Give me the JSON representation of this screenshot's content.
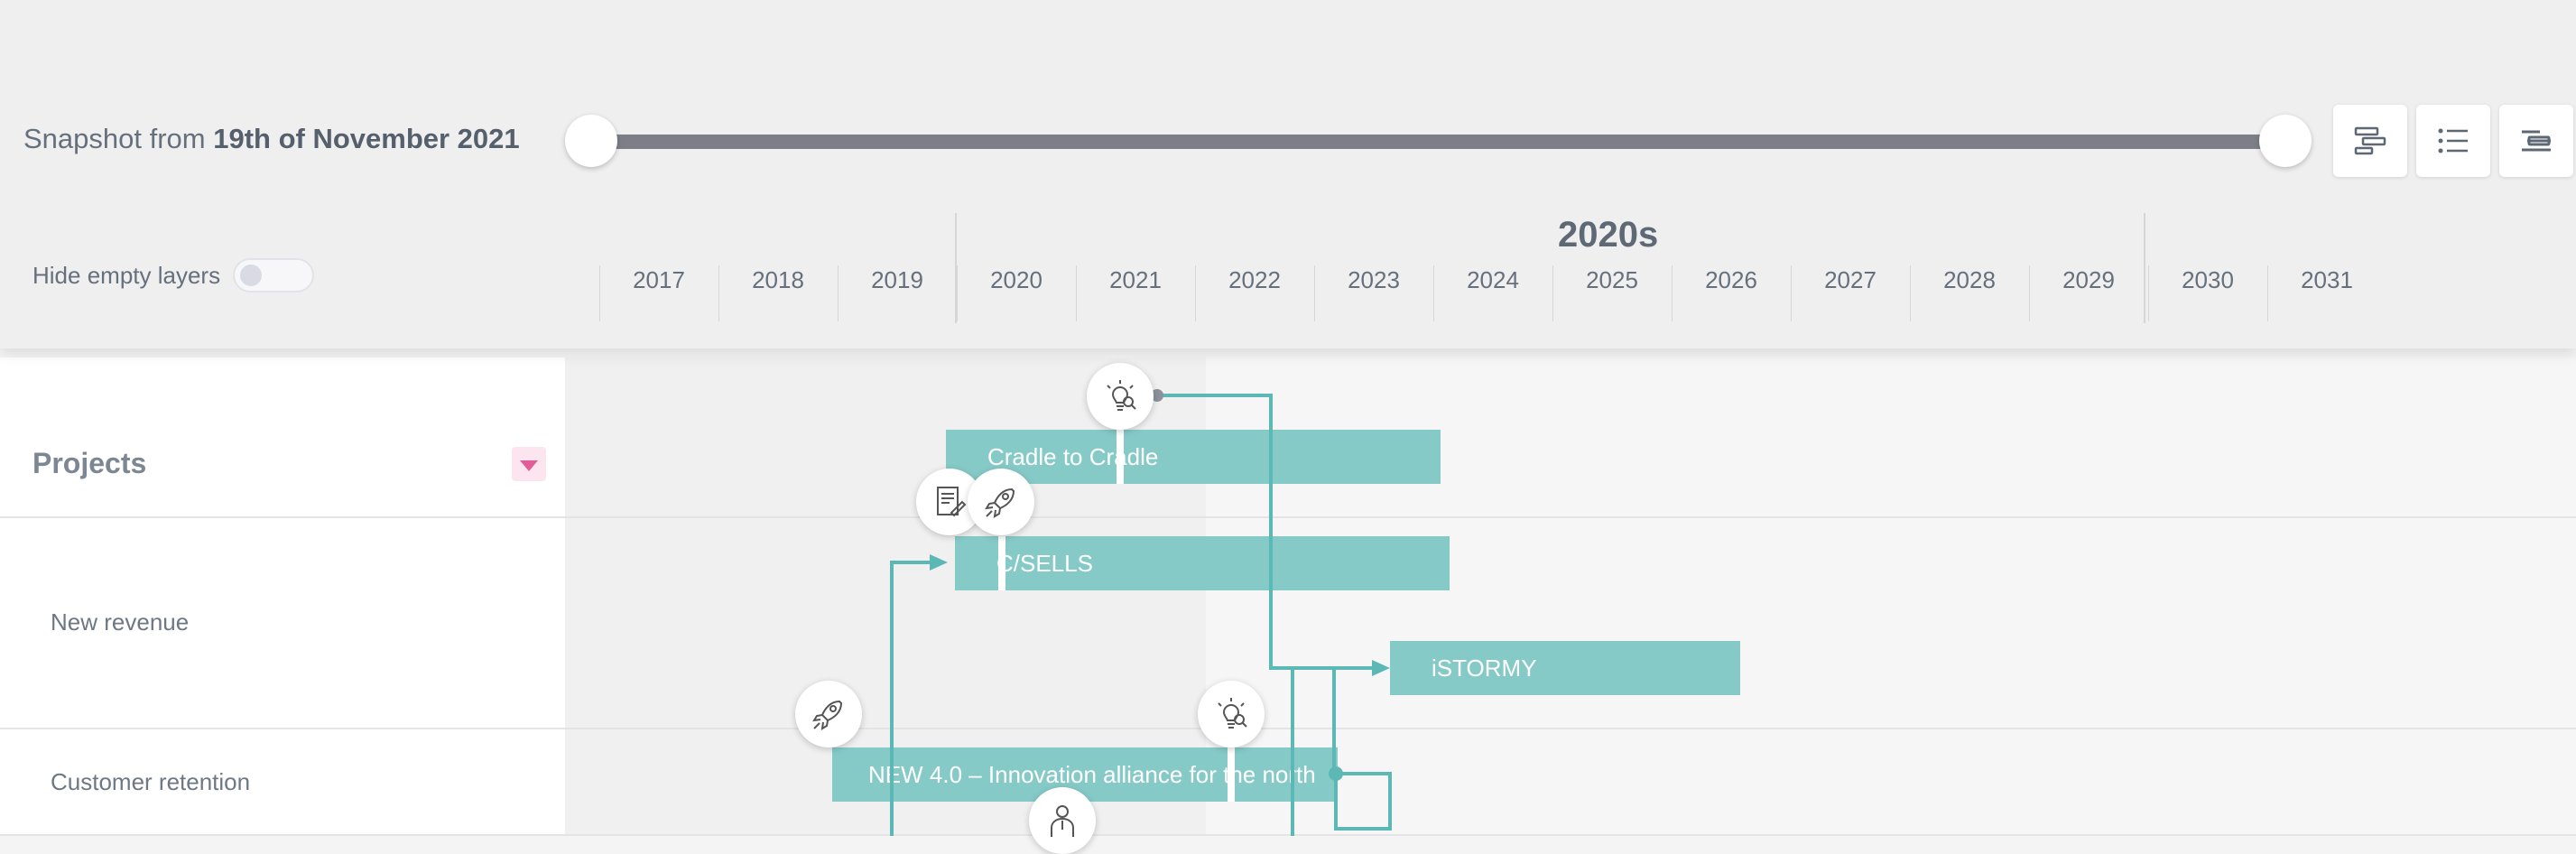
{
  "header": {
    "snapshot_prefix": "Snapshot from",
    "snapshot_date": "19th of November 2021",
    "hide_empty_label": "Hide empty layers",
    "decade_label": "2020s",
    "years": [
      "2017",
      "2018",
      "2019",
      "2020",
      "2021",
      "2022",
      "2023",
      "2024",
      "2025",
      "2026",
      "2027",
      "2028",
      "2029",
      "2030",
      "2031"
    ],
    "view_buttons": [
      "gantt-view-icon",
      "list-view-icon",
      "compact-view-icon"
    ]
  },
  "sidebar": {
    "section_title": "Projects",
    "rows": [
      "New revenue",
      "Customer retention"
    ]
  },
  "bars": [
    {
      "label": "Cradle to Cradle"
    },
    {
      "label": "C/SELLS"
    },
    {
      "label": "iSTORMY"
    },
    {
      "label": "NEW 4.0 – Innovation alliance for the north"
    }
  ],
  "milestone_icons": [
    "lightbulb-icon",
    "document-icon",
    "rocket-icon",
    "rocket-icon",
    "lightbulb-icon",
    "person-icon"
  ],
  "colors": {
    "bar": "#86cac7",
    "link": "#5cb8b5",
    "accent": "#e25c98",
    "slider_track": "#7c7f87"
  }
}
